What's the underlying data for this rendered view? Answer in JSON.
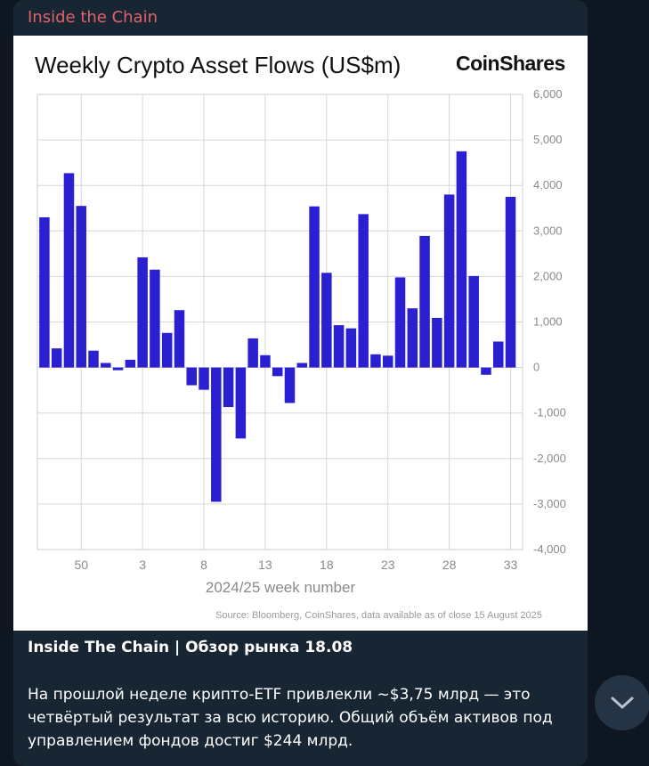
{
  "message": {
    "channel_name": "Inside the Chain",
    "post_title": "Inside The Chain | Обзор рынка 18.08",
    "body_line1": "На прошлой неделе крипто-ETF привлекли ~$3,75 млрд — это",
    "body_line2": "четвёртый результат за всю историю. Общий объём активов под",
    "body_line3": "управлением фондов достиг $244 млрд."
  },
  "chart_card": {
    "brand": "CoinShares",
    "source": "Source: Bloomberg, CoinShares, data available as of close 15 August 2025"
  },
  "chart_data": {
    "type": "bar",
    "title": "Weekly Crypto Asset Flows (US$m)",
    "xlabel": "2024/25 week number",
    "ylabel": "",
    "ylim": [
      -4000,
      6000
    ],
    "yticks": [
      6000,
      5000,
      4000,
      3000,
      2000,
      1000,
      0,
      -1000,
      -2000,
      -3000,
      -4000
    ],
    "ytick_labels": [
      "6,000",
      "5,000",
      "4,000",
      "3,000",
      "2,000",
      "1,000",
      "0",
      "-1,000",
      "-2,000",
      "-3,000",
      "-4,000"
    ],
    "x_tick_labels": [
      "50",
      "3",
      "8",
      "13",
      "18",
      "23",
      "28",
      "33"
    ],
    "x_tick_indices": [
      3,
      8,
      13,
      18,
      23,
      28,
      33,
      38
    ],
    "grid": true,
    "bar_color": "#2b1fd2",
    "values": [
      3300,
      420,
      4270,
      3550,
      370,
      100,
      -60,
      170,
      2420,
      2150,
      760,
      1260,
      -390,
      -490,
      -2950,
      -870,
      -1560,
      640,
      270,
      -190,
      -780,
      100,
      3540,
      2080,
      930,
      860,
      3370,
      290,
      260,
      1980,
      1300,
      2890,
      1090,
      3800,
      4750,
      2010,
      -160,
      570,
      3750
    ]
  },
  "ui": {
    "scroll_down_icon": "chevron-down-icon",
    "accent_color": "#e2626b"
  }
}
